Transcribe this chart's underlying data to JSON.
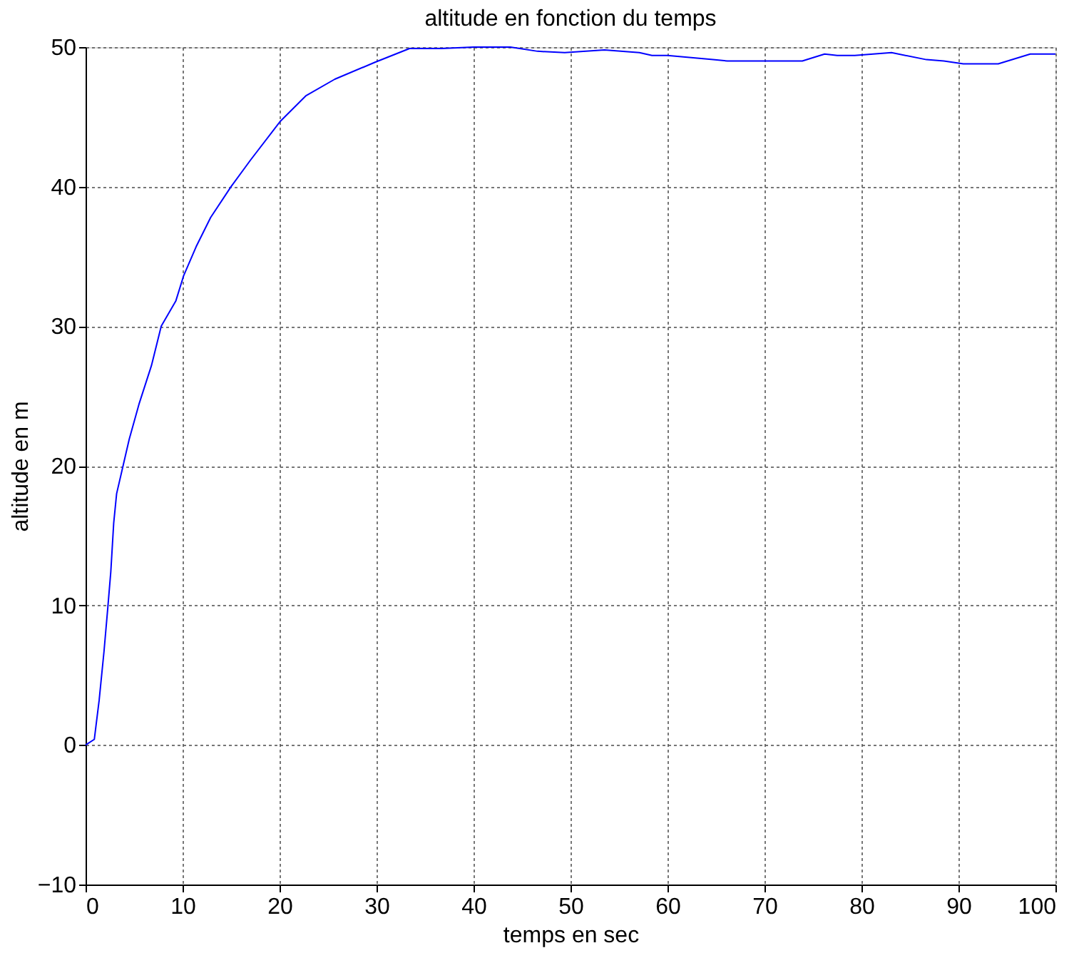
{
  "chart_data": {
    "type": "line",
    "title": "altitude en fonction du temps",
    "xlabel": "temps en sec",
    "ylabel": "altitude en m",
    "x": [
      0,
      0.9,
      1.4,
      1.9,
      2.3,
      2.6,
      2.9,
      3.2,
      3.9,
      4.5,
      5.5,
      6.8,
      7.8,
      9.3,
      10.1,
      11.4,
      12.9,
      15,
      17,
      20.1,
      22.7,
      25.7,
      29.8,
      33.4,
      36.7,
      40,
      43.8,
      46.6,
      49.4,
      53.5,
      57.1,
      58.4,
      60,
      64.7,
      66.2,
      69.8,
      73.9,
      76.2,
      77.5,
      79.3,
      83.1,
      86.7,
      88.5,
      90.5,
      94.1,
      97.4,
      100
    ],
    "series": [
      {
        "color": "#0000ff",
        "values": [
          0,
          0.4,
          3.2,
          6.7,
          9.9,
          12.4,
          15.9,
          18,
          20.1,
          21.9,
          24.4,
          27.2,
          30,
          31.8,
          33.6,
          35.7,
          37.8,
          40,
          41.9,
          44.7,
          46.5,
          47.7,
          48.9,
          49.9,
          49.9,
          50,
          50,
          49.7,
          49.6,
          49.8,
          49.6,
          49.4,
          49.4,
          49.1,
          49.0,
          49.0,
          49.0,
          49.5,
          49.4,
          49.4,
          49.6,
          49.1,
          49.0,
          48.8,
          48.8,
          49.5,
          49.5
        ]
      }
    ],
    "xlim": [
      0,
      100
    ],
    "ylim": [
      -10,
      50
    ],
    "xticks": [
      0,
      10,
      20,
      30,
      40,
      50,
      60,
      70,
      80,
      90,
      100
    ],
    "yticks": [
      -10,
      0,
      10,
      20,
      30,
      40,
      50
    ],
    "grid": true,
    "line_style": "solid",
    "marker": "none"
  }
}
